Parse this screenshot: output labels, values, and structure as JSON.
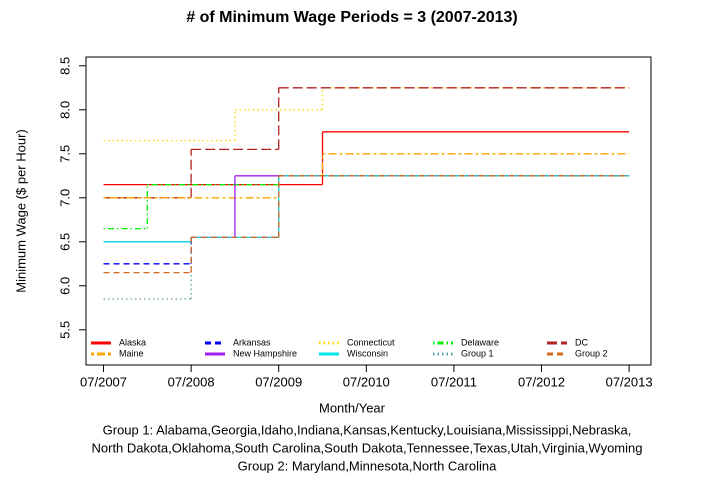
{
  "chart_data": {
    "type": "line",
    "step": true,
    "title": "# of Minimum Wage Periods = 3 (2007-2013)",
    "xlabel": "Month/Year",
    "ylabel": "Minimum Wage ($ per Hour)",
    "xlim": [
      2007.3,
      2013.75
    ],
    "ylim": [
      5.1,
      8.6
    ],
    "xticks": [
      {
        "value": 2007.5,
        "label": "07/2007"
      },
      {
        "value": 2008.5,
        "label": "07/2008"
      },
      {
        "value": 2009.5,
        "label": "07/2009"
      },
      {
        "value": 2010.5,
        "label": "07/2010"
      },
      {
        "value": 2011.5,
        "label": "07/2011"
      },
      {
        "value": 2012.5,
        "label": "07/2012"
      },
      {
        "value": 2013.5,
        "label": "07/2013"
      }
    ],
    "yticks": [
      5.5,
      {
        "value": 6,
        "label": "6.0"
      },
      6.5,
      {
        "value": 7,
        "label": "7.0"
      },
      7.5,
      {
        "value": 8,
        "label": "8.0"
      },
      8.5
    ],
    "legend": "bottom",
    "legend_columns": 5,
    "series": [
      {
        "name": "Alaska",
        "color": "#ff0000",
        "linestyle": "solid",
        "x": [
          2007.5,
          2010.0,
          2013.5
        ],
        "values": [
          7.15,
          7.75,
          7.75
        ]
      },
      {
        "name": "Arkansas",
        "color": "#0000ff",
        "linestyle": "dashed",
        "x": [
          2007.5,
          2008.5,
          2009.5,
          2013.5
        ],
        "values": [
          6.25,
          6.55,
          7.25,
          7.25
        ]
      },
      {
        "name": "Connecticut",
        "color": "#ffd700",
        "linestyle": "dotted",
        "x": [
          2007.5,
          2009.0,
          2010.0,
          2013.5
        ],
        "values": [
          7.65,
          8.0,
          8.25,
          8.25
        ]
      },
      {
        "name": "Delaware",
        "color": "#00ee00",
        "linestyle": "dotdash",
        "x": [
          2007.5,
          2008.0,
          2009.5,
          2013.5
        ],
        "values": [
          6.65,
          7.15,
          7.25,
          7.25
        ]
      },
      {
        "name": "DC",
        "color": "#b22222",
        "linestyle": "longdash",
        "x": [
          2007.5,
          2008.5,
          2009.5,
          2013.5
        ],
        "values": [
          7.0,
          7.55,
          8.25,
          8.25
        ]
      },
      {
        "name": "Maine",
        "color": "#ffa500",
        "linestyle": "twodash",
        "x": [
          2007.5,
          2009.5,
          2010.0,
          2013.5
        ],
        "values": [
          7.0,
          7.25,
          7.5,
          7.5
        ]
      },
      {
        "name": "New Hampshire",
        "color": "#a020f0",
        "linestyle": "solid",
        "x": [
          2007.5,
          2008.5,
          2009.0,
          2013.5
        ],
        "values": [
          6.5,
          6.55,
          7.25,
          7.25
        ]
      },
      {
        "name": "Wisconsin",
        "color": "#00e5ee",
        "linestyle": "solid",
        "x": [
          2007.5,
          2008.5,
          2009.5,
          2013.5
        ],
        "values": [
          6.5,
          6.55,
          7.25,
          7.25
        ]
      },
      {
        "name": "Group 1",
        "color": "#5f9ea0",
        "linestyle": "dotted",
        "x": [
          2007.5,
          2008.5,
          2009.5,
          2013.5
        ],
        "values": [
          5.85,
          6.55,
          7.25,
          7.25
        ]
      },
      {
        "name": "Group 2",
        "color": "#d2691e",
        "linestyle": "dashed",
        "x": [
          2007.5,
          2008.5,
          2009.5,
          2013.5
        ],
        "values": [
          6.15,
          6.55,
          7.25,
          7.25
        ]
      }
    ],
    "notes": [
      "Group 1: Alabama,Georgia,Idaho,Indiana,Kansas,Kentucky,Louisiana,Mississippi,Nebraska,",
      "North Dakota,Oklahoma,South Carolina,South Dakota,Tennessee,Texas,Utah,Virginia,Wyoming",
      "Group 2: Maryland,Minnesota,North Carolina"
    ]
  }
}
